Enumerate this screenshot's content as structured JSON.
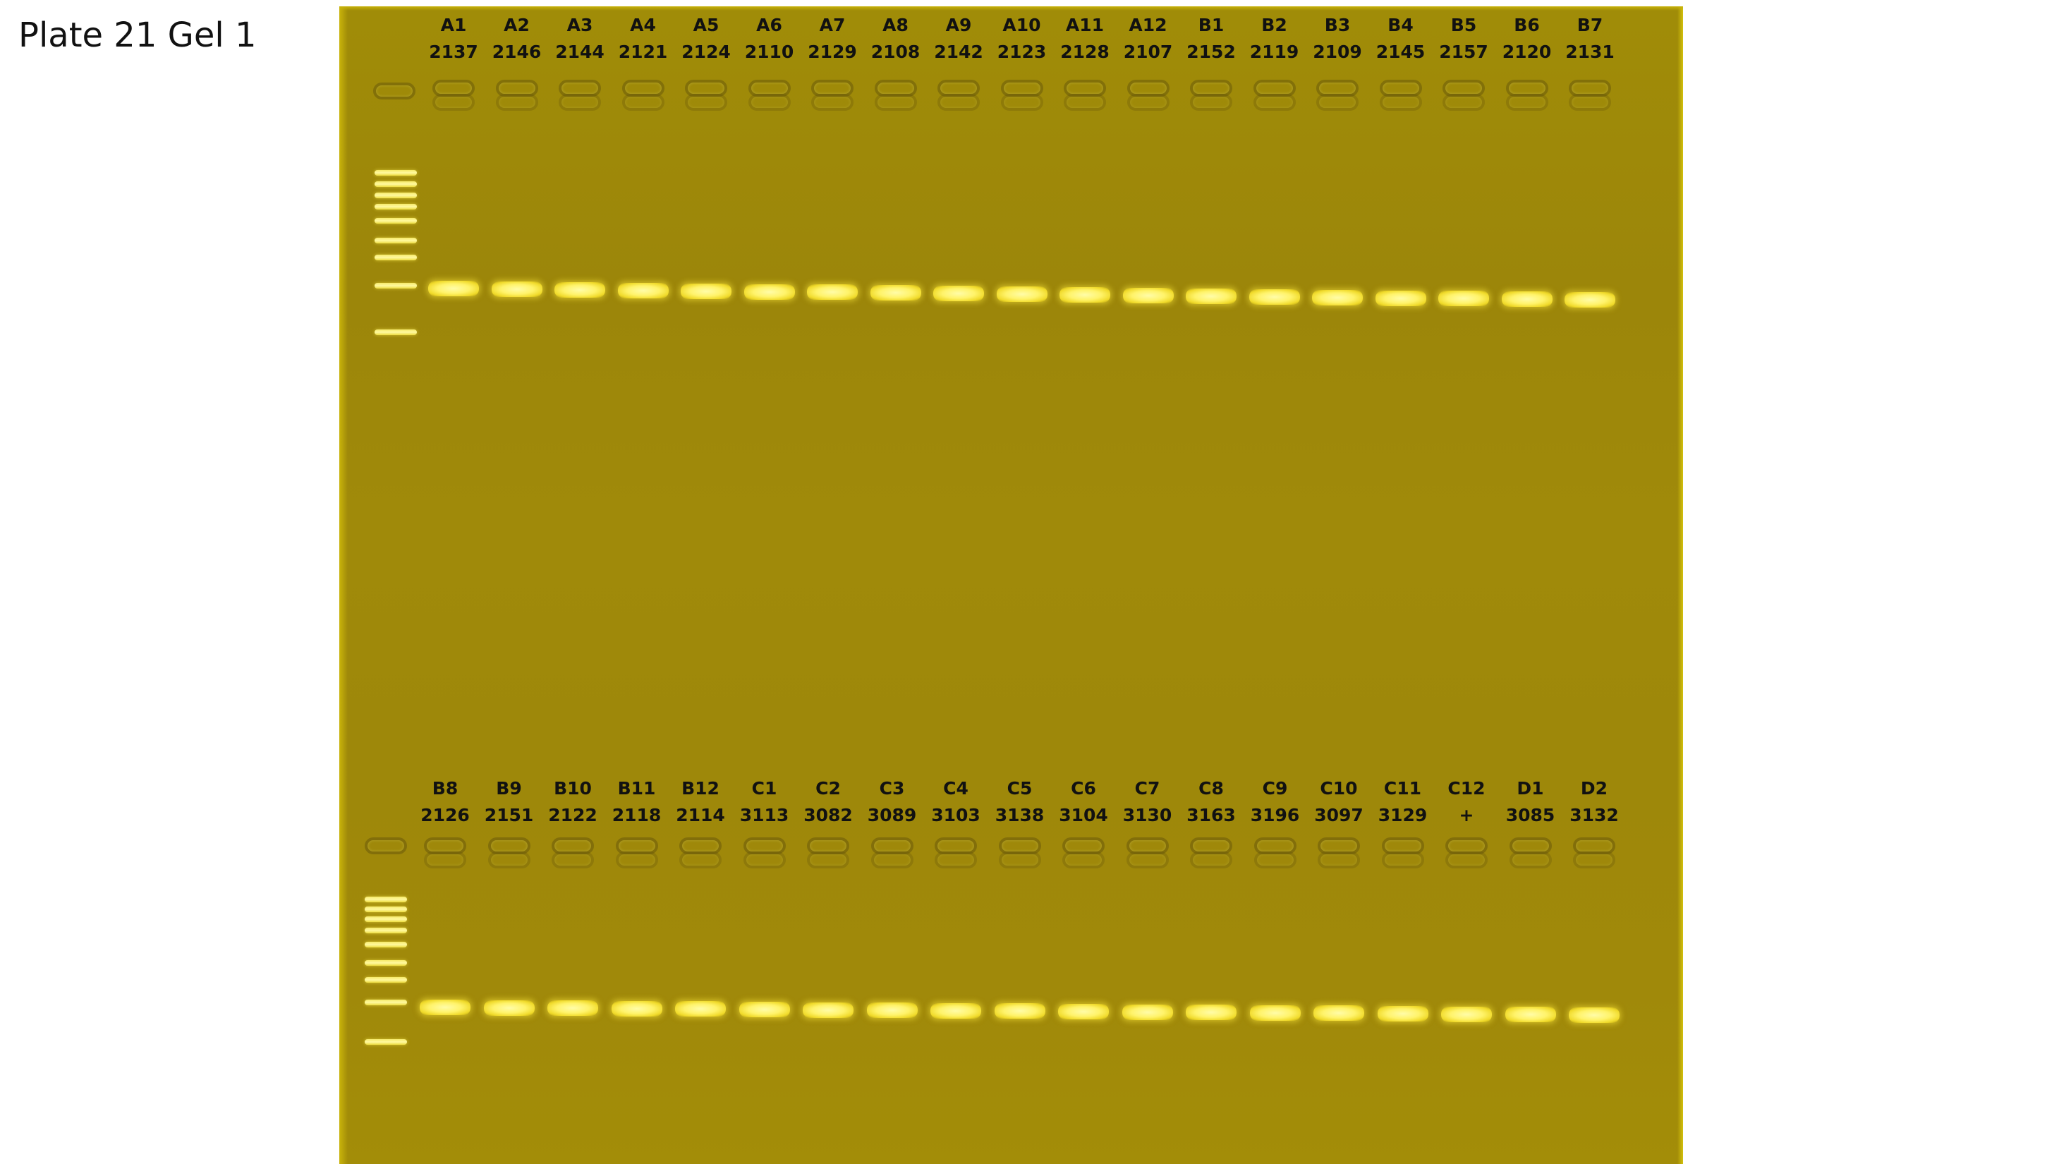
{
  "title": "Plate 21 Gel 1",
  "colors": {
    "gel": "#a08a0a",
    "band": "#fff36a",
    "label": "#111111"
  },
  "gel": {
    "top_row": {
      "lanes": [
        {
          "well": "A1",
          "sample": "2137"
        },
        {
          "well": "A2",
          "sample": "2146"
        },
        {
          "well": "A3",
          "sample": "2144"
        },
        {
          "well": "A4",
          "sample": "2121"
        },
        {
          "well": "A5",
          "sample": "2124"
        },
        {
          "well": "A6",
          "sample": "2110"
        },
        {
          "well": "A7",
          "sample": "2129"
        },
        {
          "well": "A8",
          "sample": "2108"
        },
        {
          "well": "A9",
          "sample": "2142"
        },
        {
          "well": "A10",
          "sample": "2123"
        },
        {
          "well": "A11",
          "sample": "2128"
        },
        {
          "well": "A12",
          "sample": "2107"
        },
        {
          "well": "B1",
          "sample": "2152"
        },
        {
          "well": "B2",
          "sample": "2119"
        },
        {
          "well": "B3",
          "sample": "2109"
        },
        {
          "well": "B4",
          "sample": "2145"
        },
        {
          "well": "B5",
          "sample": "2157"
        },
        {
          "well": "B6",
          "sample": "2120"
        },
        {
          "well": "B7",
          "sample": "2131"
        }
      ]
    },
    "bottom_row": {
      "lanes": [
        {
          "well": "B8",
          "sample": "2126"
        },
        {
          "well": "B9",
          "sample": "2151"
        },
        {
          "well": "B10",
          "sample": "2122"
        },
        {
          "well": "B11",
          "sample": "2118"
        },
        {
          "well": "B12",
          "sample": "2114"
        },
        {
          "well": "C1",
          "sample": "3113"
        },
        {
          "well": "C2",
          "sample": "3082"
        },
        {
          "well": "C3",
          "sample": "3089"
        },
        {
          "well": "C4",
          "sample": "3103"
        },
        {
          "well": "C5",
          "sample": "3138"
        },
        {
          "well": "C6",
          "sample": "3104"
        },
        {
          "well": "C7",
          "sample": "3130"
        },
        {
          "well": "C8",
          "sample": "3163"
        },
        {
          "well": "C9",
          "sample": "3196"
        },
        {
          "well": "C10",
          "sample": "3097"
        },
        {
          "well": "C11",
          "sample": "3129"
        },
        {
          "well": "C12",
          "sample": "+"
        },
        {
          "well": "D1",
          "sample": "3085"
        },
        {
          "well": "D2",
          "sample": "3132"
        }
      ]
    }
  }
}
